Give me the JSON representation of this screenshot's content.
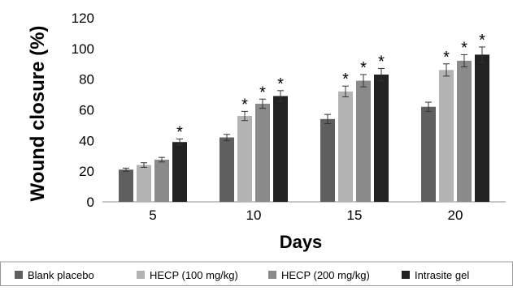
{
  "chart_data": {
    "type": "bar",
    "title": "",
    "xlabel": "Days",
    "ylabel": "Wound closure (%)",
    "ylim": [
      0,
      120
    ],
    "yticks": [
      0,
      20,
      40,
      60,
      80,
      100,
      120
    ],
    "grid": false,
    "legend_position": "bottom",
    "categories": [
      "5",
      "10",
      "15",
      "20"
    ],
    "significance_marker": "*",
    "series": [
      {
        "name": "Blank placebo",
        "color": "#5f5f5f",
        "values": [
          21,
          42,
          54,
          62
        ],
        "errors": [
          1,
          2,
          3,
          3
        ],
        "significant": [
          false,
          false,
          false,
          false
        ]
      },
      {
        "name": "HECP (100 mg/kg)",
        "color": "#b3b3b3",
        "values": [
          24,
          56,
          72,
          86
        ],
        "errors": [
          1.5,
          3,
          3.5,
          4
        ],
        "significant": [
          false,
          true,
          true,
          true
        ]
      },
      {
        "name": "HECP (200 mg/kg)",
        "color": "#8a8a8a",
        "values": [
          27.5,
          64,
          79,
          92
        ],
        "errors": [
          1.5,
          3,
          4,
          4
        ],
        "significant": [
          false,
          true,
          true,
          true
        ]
      },
      {
        "name": "Intrasite gel",
        "color": "#222222",
        "values": [
          39,
          69,
          83,
          96
        ],
        "errors": [
          2,
          3.5,
          4,
          5
        ],
        "significant": [
          true,
          true,
          true,
          true
        ]
      }
    ]
  }
}
